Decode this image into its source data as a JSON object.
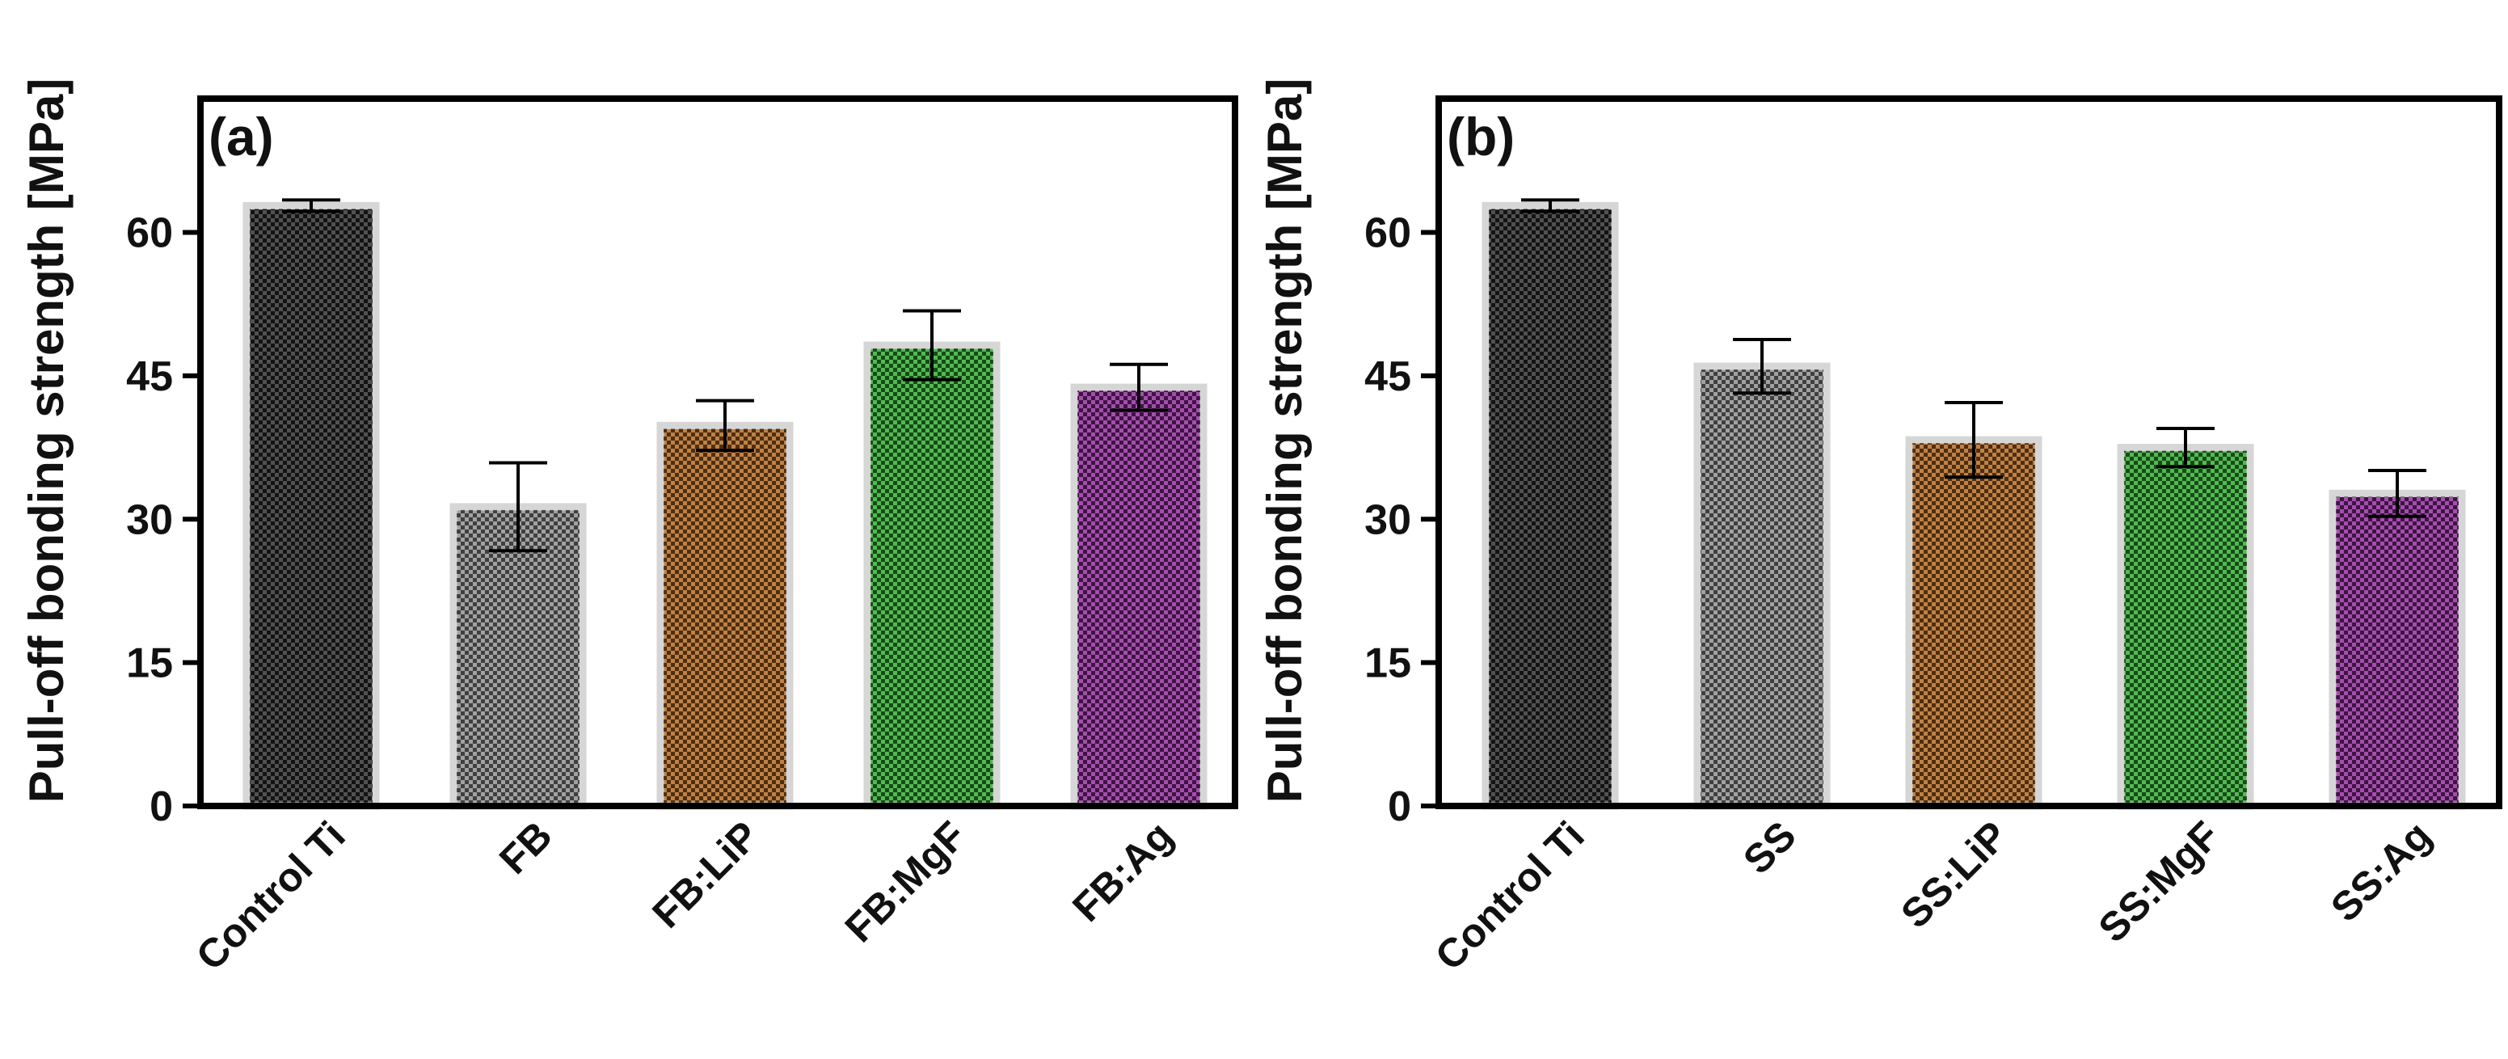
{
  "chart_data": [
    {
      "type": "bar",
      "panel_label": "(a)",
      "ylabel": "Pull-off bonding strength [MPa]",
      "ylim": [
        0,
        74
      ],
      "yticks": [
        0,
        15,
        30,
        45,
        60
      ],
      "categories": [
        "Control Ti",
        "FB",
        "FB:LiP",
        "FB:MgF",
        "FB:Ag"
      ],
      "values": [
        62.8,
        31.3,
        39.8,
        48.2,
        43.8
      ],
      "errors": [
        0.6,
        4.6,
        2.6,
        3.6,
        2.4
      ],
      "colors": [
        "#2b2b2b",
        "#8c8c8c",
        "#b0661f",
        "#2ea82e",
        "#8e2a98"
      ]
    },
    {
      "type": "bar",
      "panel_label": "(b)",
      "ylabel": "Pull-off bonding strength [MPa]",
      "ylim": [
        0,
        74
      ],
      "yticks": [
        0,
        15,
        30,
        45,
        60
      ],
      "categories": [
        "Control Ti",
        "SS",
        "SS:LiP",
        "SS:MgF",
        "SS:Ag"
      ],
      "values": [
        62.8,
        46.0,
        38.3,
        37.5,
        32.7
      ],
      "errors": [
        0.6,
        2.8,
        3.9,
        2.0,
        2.4
      ],
      "colors": [
        "#2b2b2b",
        "#8c8c8c",
        "#b0661f",
        "#2ea82e",
        "#8e2a98"
      ]
    }
  ]
}
